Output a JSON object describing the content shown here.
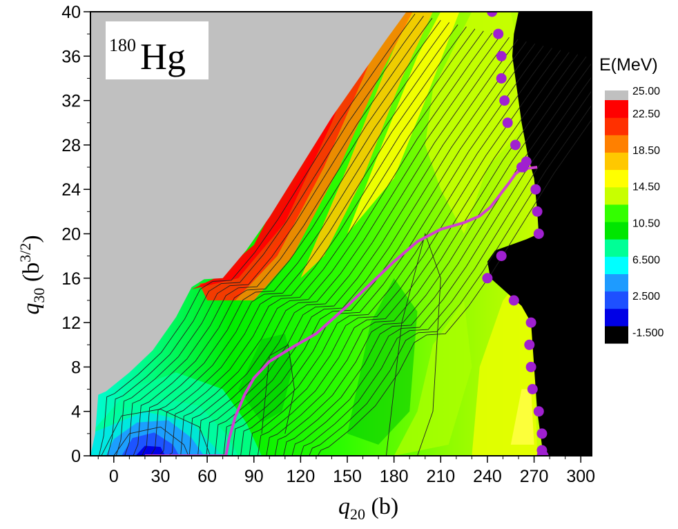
{
  "chart_data": {
    "type": "heatmap",
    "subtype": "potential-energy-surface-contour",
    "annotation": {
      "mass_number": "180",
      "element": "Hg"
    },
    "xlabel": {
      "symbol": "q",
      "sub": "20",
      "unit": " (b)"
    },
    "ylabel": {
      "symbol": "q",
      "sub": "30",
      "unit_prefix": " (b",
      "unit_sup": "3/2",
      "unit_suffix": ")"
    },
    "xlim": [
      -15,
      307
    ],
    "ylim": [
      0,
      40
    ],
    "x_ticks": [
      0,
      30,
      60,
      90,
      120,
      150,
      180,
      210,
      240,
      270,
      300
    ],
    "x_tick_labels": [
      "0",
      "30",
      "60",
      "90",
      "120",
      "150",
      "180",
      "210",
      "240",
      "270",
      "300"
    ],
    "y_ticks": [
      0,
      4,
      8,
      12,
      16,
      20,
      24,
      28,
      32,
      36,
      40
    ],
    "y_tick_labels": [
      "0",
      "4",
      "8",
      "12",
      "16",
      "20",
      "24",
      "28",
      "32",
      "36",
      "40"
    ],
    "colorbar": {
      "title": "E(MeV)",
      "range": [
        -1.5,
        25
      ],
      "tick_values": [
        25,
        22.5,
        18.5,
        14.5,
        10.5,
        6.5,
        2.5,
        -1.5
      ],
      "tick_labels": [
        "25.00",
        "22.50",
        "18.50",
        "14.50",
        "10.50",
        "6.500",
        "2.500",
        "-1.500"
      ],
      "colors": [
        "#000000",
        "#0000e6",
        "#1e50ff",
        "#1e9bff",
        "#00ffff",
        "#00ff96",
        "#00e600",
        "#33ff00",
        "#c8ff00",
        "#ffff00",
        "#ffc800",
        "#ff8000",
        "#ff3000",
        "#ff0000"
      ],
      "above_range_color": "#c0c0c0",
      "below_range_color": "#000000"
    },
    "fission_path": {
      "color": "#d040d0",
      "x": [
        20,
        72,
        74,
        78,
        84,
        90,
        100,
        115,
        130,
        150,
        165,
        180,
        195,
        210,
        225,
        235,
        242,
        248,
        254,
        258,
        262,
        266,
        272
      ],
      "y": [
        0,
        0,
        1.5,
        3.5,
        5.5,
        7,
        8.5,
        9.8,
        11,
        13.5,
        15.5,
        17.5,
        19.3,
        20.4,
        21,
        21.6,
        22.4,
        23.5,
        24.6,
        25.4,
        25.8,
        25.9,
        26
      ]
    },
    "scission_points": {
      "color": "#a020d0",
      "x": [
        243,
        247,
        249,
        249,
        251,
        253,
        258,
        262,
        265,
        263,
        271,
        272,
        273,
        240,
        249,
        257,
        268,
        267,
        268,
        269,
        273,
        275,
        275,
        275,
        276
      ],
      "y": [
        40,
        38,
        36,
        34,
        32,
        30,
        28,
        26,
        26.5,
        26,
        24,
        22,
        20,
        16,
        18,
        14,
        12,
        10,
        8,
        6,
        4,
        2,
        0.5,
        0,
        0
      ]
    }
  }
}
